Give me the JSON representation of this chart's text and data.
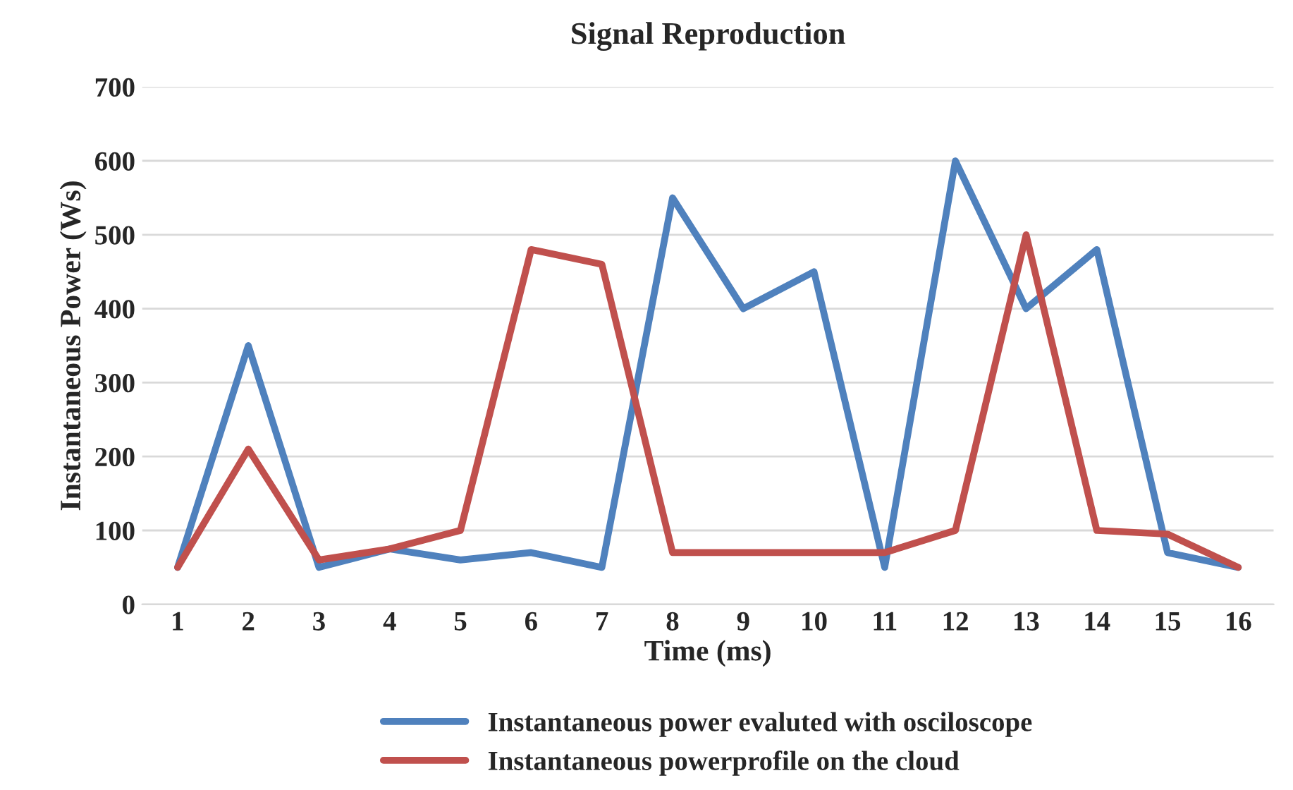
{
  "chart_data": {
    "type": "line",
    "title": "Signal Reproduction",
    "xlabel": "Time (ms)",
    "ylabel": "Instantaneous Power (Ws)",
    "categories": [
      "1",
      "2",
      "3",
      "4",
      "5",
      "6",
      "7",
      "8",
      "9",
      "10",
      "11",
      "12",
      "13",
      "14",
      "15",
      "16"
    ],
    "series": [
      {
        "name": "Instantaneous power evaluted with osciloscope",
        "color": "#4f81bd",
        "values": [
          50,
          350,
          50,
          75,
          60,
          70,
          50,
          550,
          400,
          450,
          50,
          600,
          400,
          480,
          70,
          50
        ]
      },
      {
        "name": "Instantaneous powerprofile on the cloud",
        "color": "#c0504d",
        "values": [
          50,
          210,
          60,
          75,
          100,
          480,
          460,
          70,
          70,
          70,
          70,
          100,
          500,
          100,
          95,
          50
        ]
      }
    ],
    "ylim": [
      0,
      700
    ],
    "yticks": [
      0,
      100,
      200,
      300,
      400,
      500,
      600,
      700
    ],
    "grid": "y",
    "legend": "bottom",
    "marker": "none",
    "line_style": "solid"
  }
}
